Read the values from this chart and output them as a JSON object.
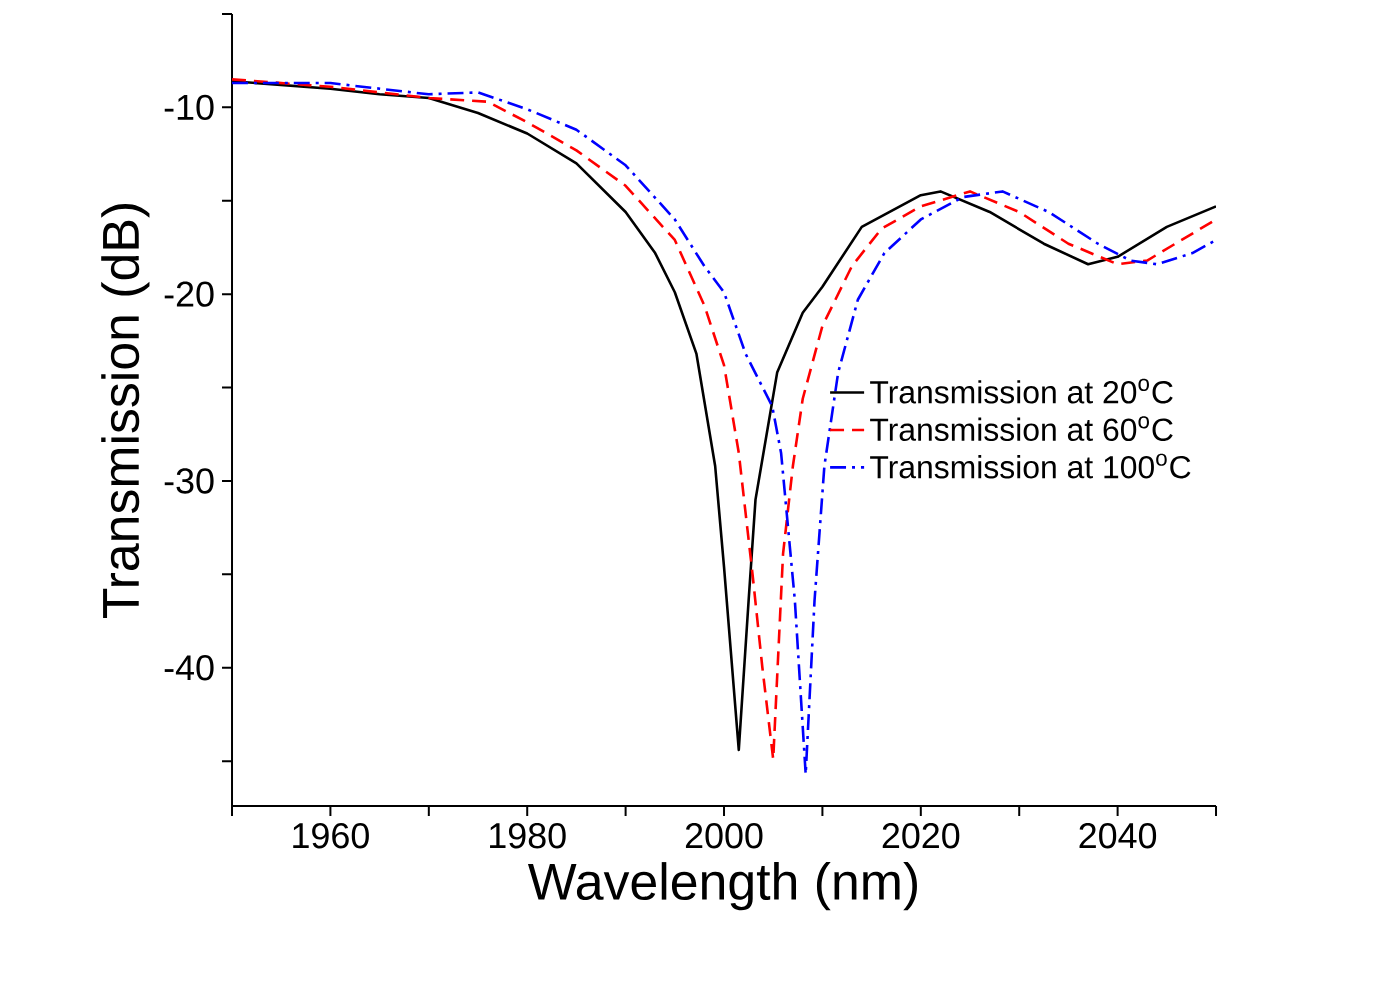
{
  "chart_data": {
    "type": "line",
    "xlabel": "Wavelength (nm)",
    "ylabel": "Transmission (dB)",
    "xlim": [
      1950,
      2050
    ],
    "ylim": [
      -47.4,
      -5
    ],
    "xticks": [
      {
        "value": 1950,
        "label": null
      },
      1960,
      {
        "value": 1970,
        "label": null
      },
      1980,
      {
        "value": 1990,
        "label": null
      },
      2000,
      {
        "value": 2010,
        "label": null
      },
      2020,
      {
        "value": 2030,
        "label": null
      },
      2040,
      {
        "value": 2050,
        "label": null
      }
    ],
    "yticks": [
      {
        "value": -45,
        "label": null
      },
      -40,
      {
        "value": -35,
        "label": null
      },
      -30,
      {
        "value": -25,
        "label": null
      },
      -20,
      {
        "value": -15,
        "label": null
      },
      -10,
      {
        "value": -5,
        "label": null
      }
    ],
    "grid": false,
    "legend": "right",
    "marker": "none",
    "series": [
      {
        "name": "Transmission at 20$^{o}$C",
        "color": "#000000",
        "line_style": "solid",
        "x": [
          1950,
          1960,
          1965,
          1970,
          1975,
          1980,
          1985,
          1990,
          1993,
          1995,
          1997.2,
          1999.1,
          2000,
          2001.5,
          2002.5,
          2003.2,
          2005.4,
          2008,
          2010,
          2014,
          2020,
          2022,
          2027,
          2032.5,
          2037,
          2040,
          2045,
          2050
        ],
        "values": [
          -8.6,
          -9.0,
          -9.3,
          -9.5,
          -10.3,
          -11.4,
          -13,
          -15.6,
          -17.8,
          -19.9,
          -23.2,
          -29.2,
          -34.6,
          -44.4,
          -36.4,
          -31,
          -24.2,
          -21,
          -19.6,
          -16.4,
          -14.7,
          -14.5,
          -15.6,
          -17.3,
          -18.4,
          -18.0,
          -16.4,
          -15.3
        ]
      },
      {
        "name": "Transmission at 60$^{o}$C",
        "color": "#ff0000",
        "line_style": "dashed",
        "x": [
          1950,
          1960,
          1970,
          1976,
          1980,
          1985,
          1990,
          1995,
          1998,
          2000,
          2001.5,
          2002.9,
          2003.9,
          2005,
          2006,
          2007,
          2008,
          2010,
          2013,
          2016,
          2020,
          2025,
          2030,
          2035,
          2040,
          2043,
          2050
        ],
        "values": [
          -8.5,
          -8.9,
          -9.5,
          -9.7,
          -10.8,
          -12.3,
          -14.2,
          -17.1,
          -20.6,
          -23.8,
          -28.5,
          -35,
          -40,
          -44.9,
          -33.9,
          -29.2,
          -25.6,
          -21.7,
          -18.5,
          -16.5,
          -15.3,
          -14.5,
          -15.6,
          -17.3,
          -18.4,
          -18.2,
          -16
        ]
      },
      {
        "name": "Transmission at 100$^{o}$C",
        "color": "#0000ff",
        "line_style": "dashdot",
        "x": [
          1950,
          1960,
          1970,
          1975,
          1980,
          1985,
          1990,
          1995,
          1998,
          2000,
          2002.2,
          2004.9,
          2005.8,
          2007.2,
          2008.3,
          2009.2,
          2010.2,
          2011.6,
          2013.6,
          2016.3,
          2020,
          2024.3,
          2028.3,
          2033,
          2038,
          2041.3,
          2044,
          2047.6,
          2050
        ],
        "values": [
          -8.7,
          -8.7,
          -9.3,
          -9.2,
          -10.1,
          -11.2,
          -13.1,
          -16,
          -18.5,
          -19.9,
          -23.2,
          -26,
          -28.5,
          -36.4,
          -45.7,
          -36.4,
          -29.2,
          -24.2,
          -20.3,
          -17.8,
          -16,
          -14.8,
          -14.5,
          -15.6,
          -17.3,
          -18.2,
          -18.4,
          -17.8,
          -17.1
        ]
      }
    ]
  }
}
